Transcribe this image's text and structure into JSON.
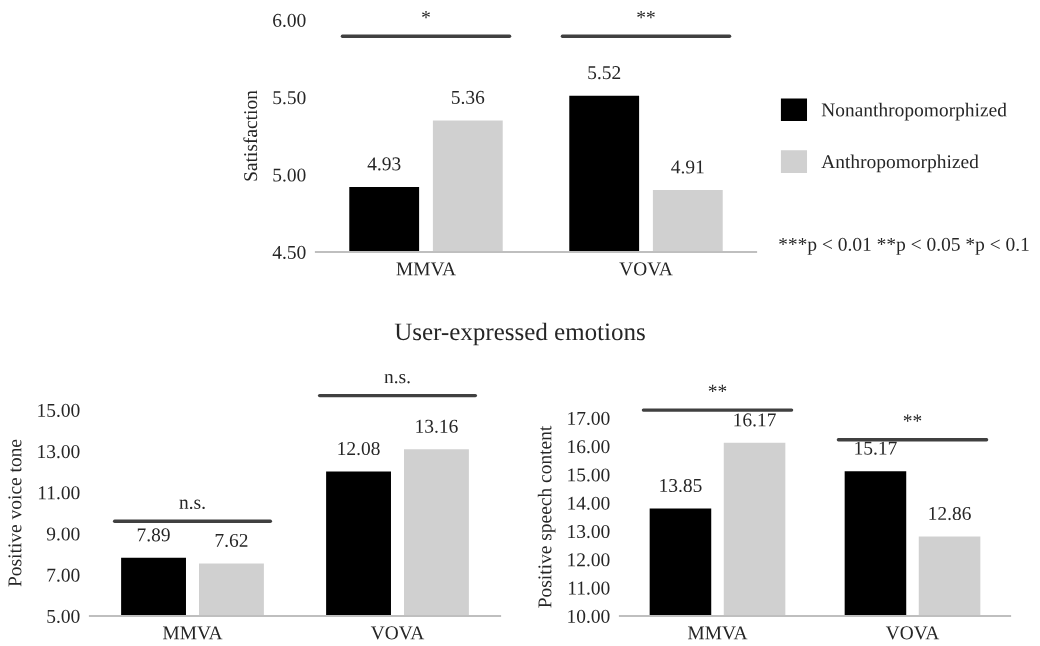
{
  "chart_data": [
    {
      "type": "bar",
      "ylabel": "Satisfaction",
      "categories": [
        "MMVA",
        "VOVA"
      ],
      "series": [
        {
          "name": "Nonanthropomorphized",
          "color": "#000000",
          "values": [
            4.93,
            5.52
          ]
        },
        {
          "name": "Anthropomorphized",
          "color": "#d0d0d0",
          "values": [
            5.36,
            4.91
          ]
        }
      ],
      "ylim": [
        4.5,
        6.0
      ],
      "yticks": [
        {
          "value": 4.5,
          "label": "4.50"
        },
        {
          "value": 5.0,
          "label": "5.00"
        },
        {
          "value": 5.5,
          "label": "5.50"
        },
        {
          "value": 6.0,
          "label": "6.00"
        }
      ],
      "data_labels": true,
      "legend": "right",
      "grid": false,
      "annotations": [
        "*",
        "**",
        "***p < 0.01 **p < 0.05 *p < 0.1"
      ]
    },
    {
      "type": "bar",
      "title": "User-expressed emotions",
      "ylabel": "Positive voice tone",
      "categories": [
        "MMVA",
        "VOVA"
      ],
      "series": [
        {
          "color": "#000000",
          "values": [
            7.89,
            12.08
          ]
        },
        {
          "color": "#d0d0d0",
          "values": [
            7.62,
            13.16
          ]
        }
      ],
      "ylim": [
        5,
        15
      ],
      "yticks": [
        {
          "value": 5,
          "label": "5.00"
        },
        {
          "value": 7,
          "label": "7.00"
        },
        {
          "value": 9,
          "label": "9.00"
        },
        {
          "value": 11,
          "label": "11.00"
        },
        {
          "value": 13,
          "label": "13.00"
        },
        {
          "value": 15,
          "label": "15.00"
        }
      ],
      "data_labels": true,
      "grid": false,
      "annotations": [
        "n.s.",
        "n.s."
      ]
    },
    {
      "type": "bar",
      "ylabel": "Positive speech content",
      "categories": [
        "MMVA",
        "VOVA"
      ],
      "series": [
        {
          "color": "#000000",
          "values": [
            13.85,
            15.17
          ]
        },
        {
          "color": "#d0d0d0",
          "values": [
            16.17,
            12.86
          ]
        }
      ],
      "ylim": [
        10,
        17
      ],
      "yticks": [
        {
          "value": 10,
          "label": "10.00"
        },
        {
          "value": 11,
          "label": "11.00"
        },
        {
          "value": 12,
          "label": "12.00"
        },
        {
          "value": 13,
          "label": "13.00"
        },
        {
          "value": 14,
          "label": "14.00"
        },
        {
          "value": 15,
          "label": "15.00"
        },
        {
          "value": 16,
          "label": "16.00"
        },
        {
          "value": 17,
          "label": "17.00"
        }
      ],
      "data_labels": true,
      "grid": false,
      "annotations": [
        "**",
        "**"
      ]
    }
  ]
}
